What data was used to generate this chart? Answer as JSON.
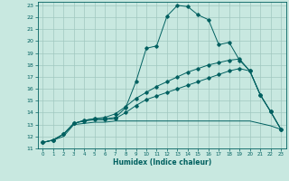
{
  "title": "",
  "xlabel": "Humidex (Indice chaleur)",
  "ylabel": "",
  "bg_color": "#c8e8e0",
  "grid_color": "#a0c8c0",
  "line_color": "#006060",
  "xlim_min": -0.5,
  "xlim_max": 23.5,
  "ylim_min": 11,
  "ylim_max": 23.3,
  "xticks": [
    0,
    1,
    2,
    3,
    4,
    5,
    6,
    7,
    8,
    9,
    10,
    11,
    12,
    13,
    14,
    15,
    16,
    17,
    18,
    19,
    20,
    21,
    22,
    23
  ],
  "yticks": [
    11,
    12,
    13,
    14,
    15,
    16,
    17,
    18,
    19,
    20,
    21,
    22,
    23
  ],
  "lines": [
    {
      "x": [
        0,
        1,
        2,
        3,
        4,
        5,
        6,
        7,
        8,
        9,
        10,
        11,
        12,
        13,
        14,
        15,
        16,
        17,
        18,
        19,
        20,
        21,
        22,
        23
      ],
      "y": [
        11.5,
        11.7,
        12.2,
        13.1,
        13.35,
        13.5,
        13.5,
        13.6,
        14.4,
        16.6,
        19.4,
        19.6,
        22.1,
        23.0,
        22.9,
        22.2,
        21.8,
        19.7,
        19.9,
        18.4,
        17.5,
        15.5,
        14.1,
        12.6
      ],
      "marker": true
    },
    {
      "x": [
        0,
        1,
        2,
        3,
        4,
        5,
        6,
        7,
        8,
        9,
        10,
        11,
        12,
        13,
        14,
        15,
        16,
        17,
        18,
        19,
        20,
        21,
        22,
        23
      ],
      "y": [
        11.5,
        11.7,
        12.2,
        13.1,
        13.35,
        13.5,
        13.6,
        13.9,
        14.5,
        15.2,
        15.7,
        16.2,
        16.6,
        17.0,
        17.4,
        17.7,
        18.0,
        18.2,
        18.4,
        18.5,
        17.5,
        15.5,
        14.1,
        12.6
      ],
      "marker": true
    },
    {
      "x": [
        0,
        1,
        2,
        3,
        4,
        5,
        6,
        7,
        8,
        9,
        10,
        11,
        12,
        13,
        14,
        15,
        16,
        17,
        18,
        19,
        20,
        21,
        22,
        23
      ],
      "y": [
        11.5,
        11.7,
        12.2,
        13.1,
        13.3,
        13.4,
        13.4,
        13.5,
        14.0,
        14.6,
        15.1,
        15.4,
        15.7,
        16.0,
        16.3,
        16.6,
        16.9,
        17.2,
        17.5,
        17.7,
        17.5,
        15.5,
        14.1,
        12.6
      ],
      "marker": true
    },
    {
      "x": [
        0,
        1,
        2,
        3,
        4,
        5,
        6,
        7,
        8,
        9,
        10,
        11,
        12,
        13,
        14,
        15,
        16,
        17,
        18,
        19,
        20,
        21,
        22,
        23
      ],
      "y": [
        11.5,
        11.7,
        12.0,
        13.0,
        13.1,
        13.2,
        13.2,
        13.3,
        13.3,
        13.3,
        13.3,
        13.3,
        13.3,
        13.3,
        13.3,
        13.3,
        13.3,
        13.3,
        13.3,
        13.3,
        13.3,
        13.1,
        12.9,
        12.6
      ],
      "marker": false
    }
  ]
}
